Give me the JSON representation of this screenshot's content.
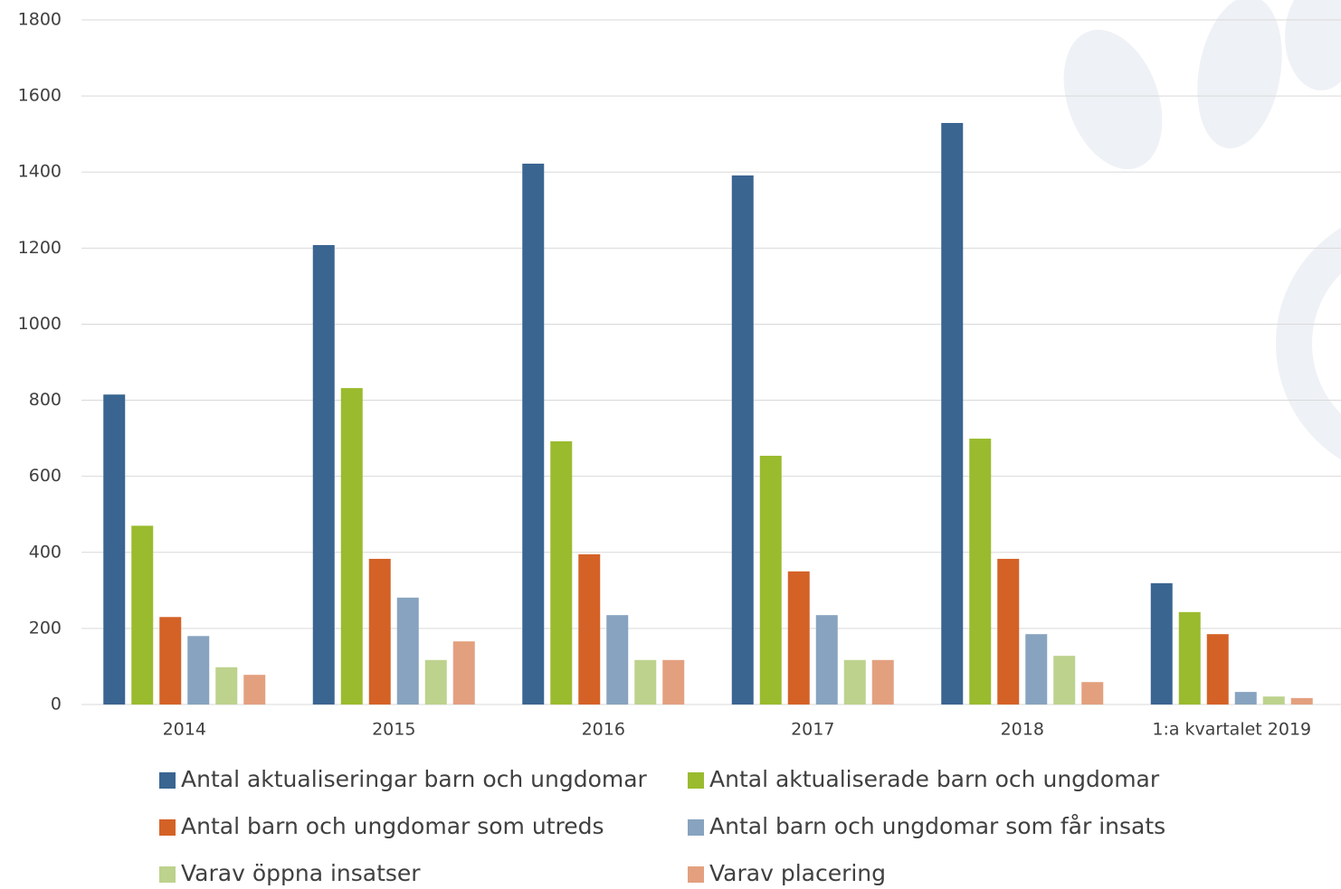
{
  "chart_data": {
    "type": "bar",
    "categories": [
      "2014",
      "2015",
      "2016",
      "2017",
      "2018",
      "1:a kvartalet 2019"
    ],
    "series": [
      {
        "name": "Antal aktualiseringar barn och ungdomar",
        "color": "#3a6591",
        "values": [
          815,
          1208,
          1422,
          1391,
          1529,
          319
        ]
      },
      {
        "name": "Antal aktualiserade barn och ungdomar",
        "color": "#9abb2e",
        "values": [
          470,
          832,
          692,
          654,
          699,
          243
        ]
      },
      {
        "name": "Antal barn och ungdomar som utreds",
        "color": "#d46227",
        "values": [
          230,
          383,
          395,
          350,
          383,
          185
        ]
      },
      {
        "name": "Antal barn och ungdomar som får insats",
        "color": "#87a3bf",
        "values": [
          180,
          281,
          235,
          235,
          185,
          33
        ]
      },
      {
        "name": "Varav öppna insatser",
        "color": "#bdd28d",
        "values": [
          98,
          117,
          117,
          117,
          128,
          21
        ]
      },
      {
        "name": "Varav placering",
        "color": "#e3a07f",
        "values": [
          78,
          166,
          117,
          117,
          59,
          17
        ]
      }
    ],
    "ylim": [
      0,
      1800
    ],
    "yticks": [
      0,
      200,
      400,
      600,
      800,
      1000,
      1200,
      1400,
      1600,
      1800
    ],
    "grid": true
  }
}
